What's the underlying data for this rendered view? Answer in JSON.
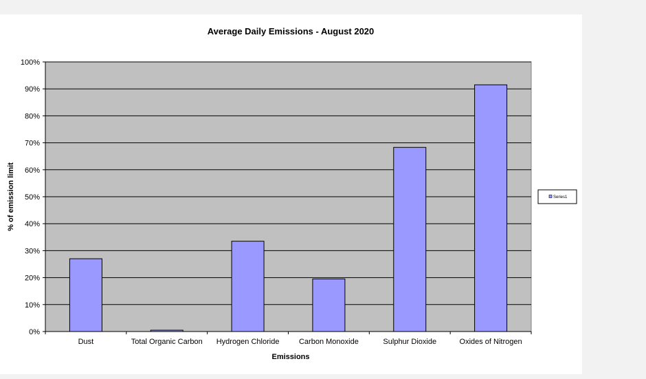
{
  "chart_data": {
    "type": "bar",
    "title": "Average Daily Emissions - August  2020",
    "xlabel": "Emissions",
    "ylabel": "% of emission limit",
    "categories": [
      "Dust",
      "Total Organic Carbon",
      "Hydrogen Chloride",
      "Carbon Monoxide",
      "Sulphur Dioxide",
      "Oxides of Nitrogen"
    ],
    "series": [
      {
        "name": "Series1",
        "values": [
          27,
          0.5,
          33.5,
          19.5,
          68.3,
          91.5
        ]
      }
    ],
    "ylim": [
      0,
      100
    ],
    "yticks": [
      "0%",
      "10%",
      "20%",
      "30%",
      "40%",
      "50%",
      "60%",
      "70%",
      "80%",
      "90%",
      "100%"
    ],
    "grid": true,
    "legend_position": "right",
    "colors": {
      "bar_fill": "#9999ff",
      "plot_background": "#c0c0c0",
      "gridline": "#000000"
    }
  }
}
